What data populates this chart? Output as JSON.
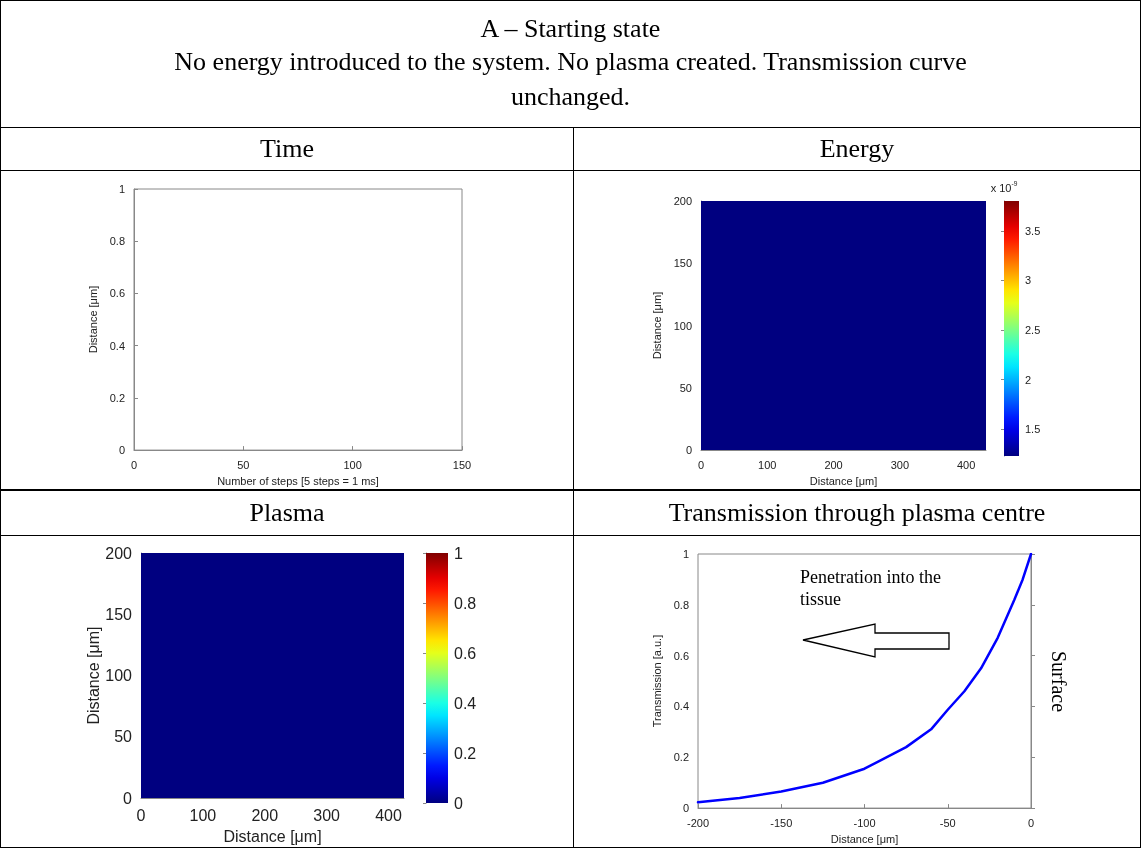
{
  "chart_data": [
    {
      "type": "other",
      "title": "A – Starting state",
      "subtitle": "No energy introduced to the system. No plasma created. Transmission curve unchanged."
    },
    {
      "type": "line",
      "title": "Time",
      "xlabel": "Number of steps [5 steps = 1 ms]",
      "ylabel": "Distance [μm]",
      "xlim": [
        0,
        150
      ],
      "xticks": [
        0,
        50,
        100,
        150
      ],
      "ylim": [
        0,
        1
      ],
      "yticks": [
        0,
        0.2,
        0.4,
        0.6,
        0.8,
        1
      ]
    },
    {
      "type": "heatmap",
      "title": "Energy",
      "xlabel": "Distance [μm]",
      "ylabel": "Distance [μm]",
      "clabel": "x 10$^{-9}$",
      "cells": [
        [
          1.23
        ]
      ],
      "xlim": [
        0,
        430
      ],
      "xticks": [
        0,
        100,
        200,
        300,
        400
      ],
      "ylim": [
        0,
        200
      ],
      "yticks": [
        0,
        50,
        100,
        150,
        200
      ],
      "clim": [
        1.23,
        3.8
      ],
      "cticks": [
        1.5,
        2,
        2.5,
        3,
        3.5
      ]
    },
    {
      "type": "heatmap",
      "title": "Plasma",
      "xlabel": "Distance [μm]",
      "ylabel": "Distance [μm]",
      "cells": [
        [
          0
        ]
      ],
      "xlim": [
        0,
        425
      ],
      "xticks": [
        0,
        100,
        200,
        300,
        400
      ],
      "ylim": [
        0,
        200
      ],
      "yticks": [
        0,
        50,
        100,
        150,
        200
      ],
      "clim": [
        0,
        1
      ],
      "cticks": [
        0,
        0.2,
        0.4,
        0.6,
        0.8,
        1
      ]
    },
    {
      "type": "line",
      "title": "Transmission through plasma centre",
      "xlabel": "Distance [μm]",
      "ylabel": "Transmission [a.u.]",
      "annotations": [
        "Penetration into the tissue",
        "Surface"
      ],
      "x": [
        -200,
        -175,
        -150,
        -125,
        -100,
        -75,
        -60,
        -50,
        -40,
        -30,
        -20,
        -10,
        -5,
        0
      ],
      "xlim": [
        -200,
        0
      ],
      "xticks": [
        -200,
        -150,
        -100,
        -50,
        0
      ],
      "ylim": [
        0,
        1
      ],
      "yticks": [
        0,
        0.2,
        0.4,
        0.6,
        0.8,
        1
      ],
      "series": [
        {
          "color": "#0000ff",
          "values": [
            0.023,
            0.04,
            0.065,
            0.1,
            0.155,
            0.24,
            0.31,
            0.387,
            0.46,
            0.55,
            0.67,
            0.82,
            0.9,
            1
          ]
        }
      ]
    }
  ]
}
